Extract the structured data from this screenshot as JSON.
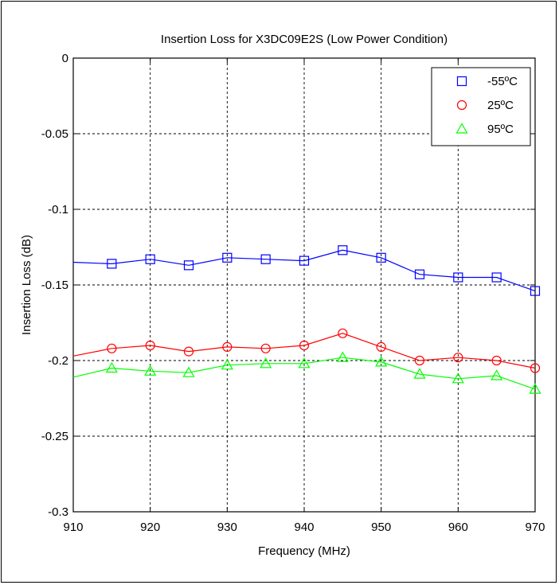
{
  "chart_data": {
    "type": "line",
    "title": "Insertion Loss for X3DC09E2S (Low Power Condition)",
    "xlabel": "Frequency (MHz)",
    "ylabel": "Insertion Loss (dB)",
    "xlim": [
      910,
      970
    ],
    "ylim": [
      -0.3,
      0
    ],
    "xticks": [
      910,
      920,
      930,
      940,
      950,
      960,
      970
    ],
    "yticks": [
      0,
      -0.05,
      -0.1,
      -0.15,
      -0.2,
      -0.25,
      -0.3
    ],
    "ytick_labels": [
      "0",
      "-0.05",
      "-0.1",
      "-0.15",
      "-0.2",
      "-0.25",
      "-0.3"
    ],
    "grid": true,
    "legend_position": "top-right",
    "series": [
      {
        "name": "-55ºC",
        "color": "#0000ff",
        "marker": "square",
        "x": [
          910,
          915,
          920,
          925,
          930,
          935,
          940,
          945,
          950,
          955,
          960,
          965,
          970
        ],
        "y": [
          -0.135,
          -0.136,
          -0.133,
          -0.137,
          -0.132,
          -0.133,
          -0.134,
          -0.127,
          -0.132,
          -0.143,
          -0.145,
          -0.145,
          -0.154
        ],
        "marker_x": [
          915,
          920,
          925,
          930,
          935,
          940,
          945,
          950,
          955,
          960,
          965,
          970
        ]
      },
      {
        "name": "25ºC",
        "color": "#ff0000",
        "marker": "circle",
        "x": [
          910,
          915,
          920,
          925,
          930,
          935,
          940,
          945,
          950,
          955,
          960,
          965,
          970
        ],
        "y": [
          -0.197,
          -0.192,
          -0.19,
          -0.194,
          -0.191,
          -0.192,
          -0.19,
          -0.182,
          -0.191,
          -0.2,
          -0.198,
          -0.2,
          -0.205
        ],
        "marker_x": [
          915,
          920,
          925,
          930,
          935,
          940,
          945,
          950,
          955,
          960,
          965,
          970
        ]
      },
      {
        "name": "95ºC",
        "color": "#00ff00",
        "marker": "triangle",
        "x": [
          910,
          915,
          920,
          925,
          930,
          935,
          940,
          945,
          950,
          955,
          960,
          965,
          970
        ],
        "y": [
          -0.211,
          -0.205,
          -0.207,
          -0.208,
          -0.203,
          -0.202,
          -0.202,
          -0.198,
          -0.201,
          -0.209,
          -0.212,
          -0.21,
          -0.219
        ],
        "marker_x": [
          915,
          920,
          925,
          930,
          935,
          940,
          945,
          950,
          955,
          960,
          965,
          970
        ]
      }
    ]
  }
}
